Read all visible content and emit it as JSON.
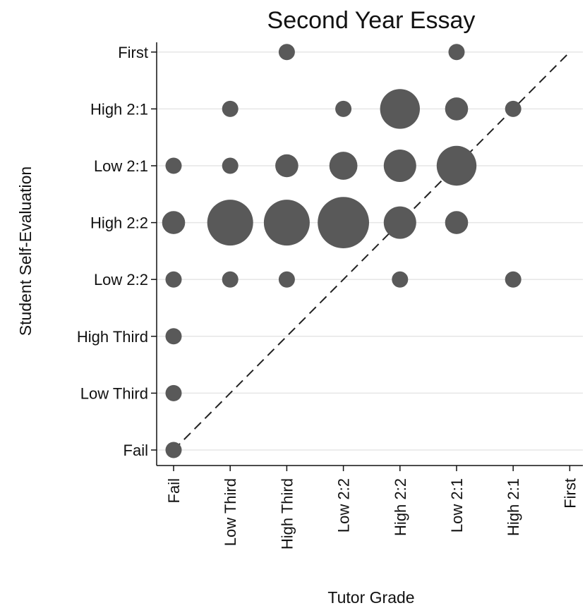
{
  "chart_data": {
    "type": "scatter",
    "subtype": "bubble",
    "title": "Second Year Essay",
    "xlabel": "Tutor Grade",
    "ylabel": "Student Self-Evaluation",
    "x_categories": [
      "Fail",
      "Low Third",
      "High Third",
      "Low 2:2",
      "High 2:2",
      "Low 2:1",
      "High 2:1",
      "First"
    ],
    "y_categories": [
      "Fail",
      "Low Third",
      "High Third",
      "Low 2:2",
      "High 2:2",
      "Low 2:1",
      "High 2:1",
      "First"
    ],
    "grid": "horizontal",
    "reference_line": {
      "style": "dashed",
      "from": [
        "Fail",
        "Fail"
      ],
      "to": [
        "First",
        "First"
      ]
    },
    "marker_color": "#595959",
    "points": [
      {
        "x": "High Third",
        "y": "First",
        "size": 1
      },
      {
        "x": "Low 2:1",
        "y": "First",
        "size": 1
      },
      {
        "x": "Low Third",
        "y": "High 2:1",
        "size": 1
      },
      {
        "x": "Low 2:2",
        "y": "High 2:1",
        "size": 1
      },
      {
        "x": "High 2:2",
        "y": "High 2:1",
        "size": 6
      },
      {
        "x": "Low 2:1",
        "y": "High 2:1",
        "size": 2
      },
      {
        "x": "High 2:1",
        "y": "High 2:1",
        "size": 1
      },
      {
        "x": "Fail",
        "y": "Low 2:1",
        "size": 1
      },
      {
        "x": "Low Third",
        "y": "Low 2:1",
        "size": 1
      },
      {
        "x": "High Third",
        "y": "Low 2:1",
        "size": 2
      },
      {
        "x": "Low 2:2",
        "y": "Low 2:1",
        "size": 3
      },
      {
        "x": "High 2:2",
        "y": "Low 2:1",
        "size": 4
      },
      {
        "x": "Low 2:1",
        "y": "Low 2:1",
        "size": 6
      },
      {
        "x": "Fail",
        "y": "High 2:2",
        "size": 2
      },
      {
        "x": "Low Third",
        "y": "High 2:2",
        "size": 8
      },
      {
        "x": "High Third",
        "y": "High 2:2",
        "size": 8
      },
      {
        "x": "Low 2:2",
        "y": "High 2:2",
        "size": 10
      },
      {
        "x": "High 2:2",
        "y": "High 2:2",
        "size": 4
      },
      {
        "x": "Low 2:1",
        "y": "High 2:2",
        "size": 2
      },
      {
        "x": "Fail",
        "y": "Low 2:2",
        "size": 1
      },
      {
        "x": "Low Third",
        "y": "Low 2:2",
        "size": 1
      },
      {
        "x": "High Third",
        "y": "Low 2:2",
        "size": 1
      },
      {
        "x": "High 2:2",
        "y": "Low 2:2",
        "size": 1
      },
      {
        "x": "High 2:1",
        "y": "Low 2:2",
        "size": 1
      },
      {
        "x": "Fail",
        "y": "High Third",
        "size": 1
      },
      {
        "x": "Fail",
        "y": "Low Third",
        "size": 1
      },
      {
        "x": "Fail",
        "y": "Fail",
        "size": 1
      }
    ]
  }
}
